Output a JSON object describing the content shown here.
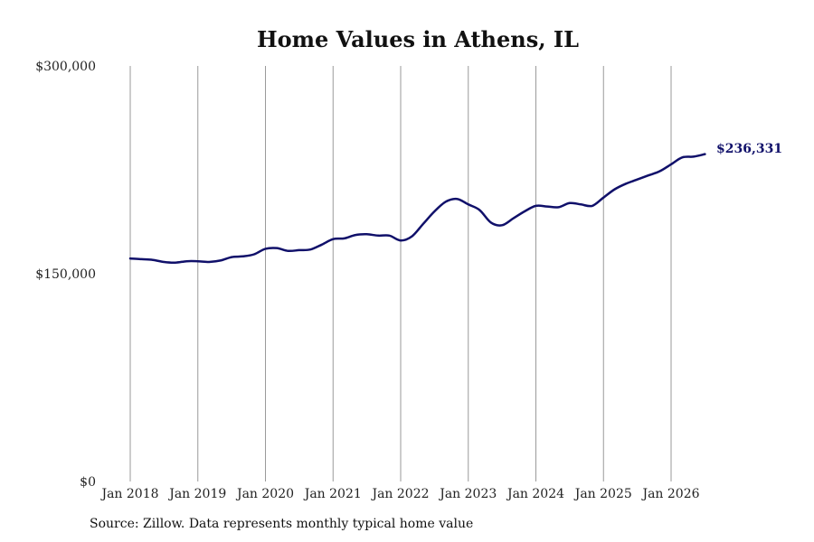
{
  "chart_data": {
    "type": "line",
    "title": "Home Values in Athens, IL",
    "ylim": [
      0,
      300000
    ],
    "y_ticks": [
      "$0",
      "$150,000",
      "$300,000"
    ],
    "y_tick_values": [
      0,
      150000,
      300000
    ],
    "x_ticks": [
      "Jan 2018",
      "Jan 2019",
      "Jan 2020",
      "Jan 2021",
      "Jan 2022",
      "Jan 2023",
      "Jan 2024",
      "Jan 2025",
      "Jan 2026"
    ],
    "x_tick_dates": [
      "2018-01",
      "2019-01",
      "2020-01",
      "2021-01",
      "2022-01",
      "2023-01",
      "2024-01",
      "2025-01",
      "2026-01"
    ],
    "grid": "vertical at x ticks",
    "line_color": "#10106a",
    "grid_color": "#9a9a9a",
    "end_label": "$236,331",
    "series": [
      {
        "x": [
          "2018-01",
          "2018-03",
          "2018-05",
          "2018-07",
          "2018-09",
          "2018-11",
          "2019-01",
          "2019-03",
          "2019-05",
          "2019-07",
          "2019-09",
          "2019-11",
          "2020-01",
          "2020-03",
          "2020-05",
          "2020-07",
          "2020-09",
          "2020-11",
          "2021-01",
          "2021-03",
          "2021-05",
          "2021-07",
          "2021-09",
          "2021-11",
          "2022-01",
          "2022-03",
          "2022-05",
          "2022-07",
          "2022-09",
          "2022-11",
          "2023-01",
          "2023-03",
          "2023-05",
          "2023-07",
          "2023-09",
          "2023-11",
          "2024-01",
          "2024-03",
          "2024-05",
          "2024-07",
          "2024-09",
          "2024-11",
          "2025-01",
          "2025-03",
          "2025-05",
          "2025-07",
          "2025-09",
          "2025-11",
          "2026-01",
          "2026-03",
          "2026-05",
          "2026-07"
        ],
        "values": [
          161000,
          160500,
          160000,
          158500,
          158000,
          159000,
          159000,
          158500,
          159500,
          162000,
          162500,
          164000,
          168000,
          168500,
          166500,
          167000,
          167500,
          171000,
          175000,
          175500,
          178000,
          178500,
          177500,
          177500,
          174000,
          177000,
          186000,
          195000,
          202000,
          204000,
          200000,
          196000,
          187000,
          185000,
          190000,
          195000,
          199000,
          198500,
          198000,
          201000,
          200000,
          199000,
          205000,
          211000,
          215000,
          218000,
          221000,
          224000,
          229000,
          234000,
          234500,
          236331
        ]
      }
    ]
  },
  "source_text": "Source: Zillow. Data represents monthly typical home value"
}
